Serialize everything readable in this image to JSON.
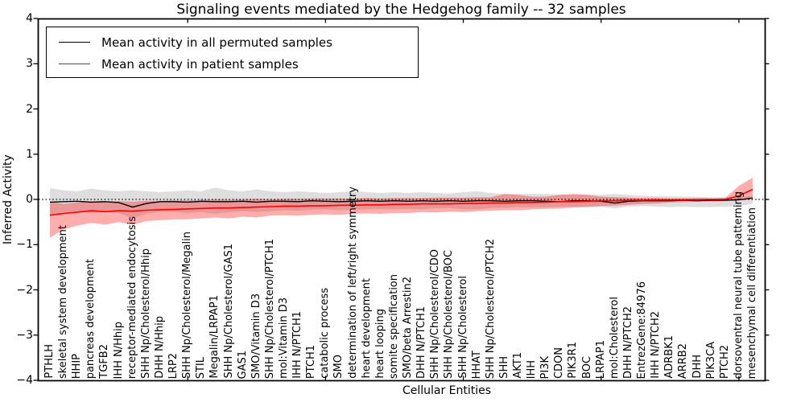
{
  "title": "Signaling events mediated by the Hedgehog family -- 32 samples",
  "legend": {
    "items": [
      {
        "label": "Mean activity in all permuted samples",
        "color": "#000000"
      },
      {
        "label": "Mean activity in patient samples",
        "color": "#ff0000"
      }
    ]
  },
  "axes": {
    "xlabel": "Cellular Entities",
    "ylabel": "Inferred Activity",
    "ytick_labels": [
      "4",
      "3",
      "2",
      "1",
      "0",
      "−1",
      "−2",
      "−3",
      "−4"
    ]
  },
  "chart_data": {
    "type": "line",
    "title": "Signaling events mediated by the Hedgehog family -- 32 samples",
    "xlabel": "Cellular Entities",
    "ylabel": "Inferred Activity",
    "ylim": [
      -4,
      4
    ],
    "yticks": [
      4,
      3,
      2,
      1,
      0,
      -1,
      -2,
      -3,
      -4
    ],
    "xtick_positions": [
      10,
      20,
      30,
      40,
      50
    ],
    "grid": false,
    "legend_position": "upper left",
    "baseline": {
      "y": 0,
      "style": "dotted",
      "color": "#000000"
    },
    "categories": [
      "PTHLH",
      "skeletal system development",
      "HHIP",
      "pancreas development",
      "TGFB2",
      "IHH N/Hhip",
      "receptor-mediated endocytosis",
      "SHH Np/Cholesterol/Hhip",
      "DHH N/Hhip",
      "LRP2",
      "SHH Np/Cholesterol/Megalin",
      "STIL",
      "Megalin/LRPAP1",
      "SHH Np/Cholesterol/GAS1",
      "GAS1",
      "SMO/Vitamin D3",
      "SHH Np/Cholesterol/PTCH1",
      "mol:Vitamin D3",
      "IHH N/PTCH1",
      "PTCH1",
      "catabolic process",
      "SMO",
      "determination of left/right symmetry",
      "heart development",
      "heart looping",
      "somite specification",
      "SMO/beta Arrestin2",
      "DHH N/PTCH1",
      "SHH Np/Cholesterol/CDO",
      "SHH Np/Cholesterol/BOC",
      "SHH Np/Cholesterol",
      "HHAT",
      "SHH Np/Cholesterol/PTCH2",
      "SHH",
      "AKT1",
      "IHH",
      "PI3K",
      "CDON",
      "PIK3R1",
      "BOC",
      "LRPAP1",
      "mol:Cholesterol",
      "DHH N/PTCH2",
      "EntrezGene:84976",
      "IHH N/PTCH2",
      "ADRBK1",
      "ARRB2",
      "DHH",
      "PIK3CA",
      "PTCH2",
      "dorsoventral neural tube patterning",
      "mesenchymal cell differentiation"
    ],
    "series": [
      {
        "name": "Mean activity in all permuted samples",
        "color": "#000000",
        "values": [
          -0.06,
          -0.05,
          -0.04,
          -0.06,
          -0.05,
          -0.07,
          -0.17,
          -0.09,
          -0.05,
          -0.05,
          -0.06,
          -0.04,
          -0.05,
          -0.05,
          -0.04,
          -0.06,
          -0.04,
          -0.04,
          -0.05,
          -0.03,
          -0.04,
          -0.05,
          -0.04,
          -0.03,
          -0.04,
          -0.03,
          -0.04,
          -0.03,
          -0.04,
          -0.03,
          -0.04,
          -0.03,
          -0.03,
          -0.04,
          -0.03,
          -0.03,
          -0.04,
          -0.05,
          -0.03,
          -0.03,
          -0.04,
          -0.08,
          -0.04,
          -0.03,
          -0.03,
          -0.03,
          -0.02,
          -0.03,
          -0.02,
          -0.02,
          -0.01,
          0.03
        ],
        "band": {
          "upper": [
            0.25,
            0.2,
            0.18,
            0.24,
            0.2,
            0.18,
            0.2,
            0.18,
            0.16,
            0.18,
            0.2,
            0.18,
            0.26,
            0.2,
            0.18,
            0.22,
            0.18,
            0.16,
            0.18,
            0.16,
            0.14,
            0.16,
            0.18,
            0.16,
            0.14,
            0.16,
            0.14,
            0.16,
            0.14,
            0.13,
            0.16,
            0.18,
            0.14,
            0.12,
            0.12,
            0.12,
            0.12,
            0.11,
            0.1,
            0.11,
            0.1,
            0.12,
            0.1,
            0.08,
            0.07,
            0.07,
            0.06,
            0.06,
            0.05,
            0.05,
            0.06,
            0.08
          ],
          "lower": [
            -0.35,
            -0.28,
            -0.26,
            -0.3,
            -0.28,
            -0.3,
            -0.42,
            -0.32,
            -0.28,
            -0.28,
            -0.3,
            -0.28,
            -0.32,
            -0.28,
            -0.26,
            -0.28,
            -0.26,
            -0.24,
            -0.25,
            -0.23,
            -0.22,
            -0.24,
            -0.23,
            -0.22,
            -0.21,
            -0.22,
            -0.21,
            -0.22,
            -0.2,
            -0.19,
            -0.22,
            -0.22,
            -0.19,
            -0.18,
            -0.17,
            -0.17,
            -0.17,
            -0.16,
            -0.16,
            -0.16,
            -0.16,
            -0.2,
            -0.16,
            -0.15,
            -0.16,
            -0.17,
            -0.16,
            -0.17,
            -0.17,
            -0.16,
            -0.15,
            -0.1
          ],
          "color": "#000000",
          "opacity": 0.13
        }
      },
      {
        "name": "Mean activity in patient samples",
        "color": "#ff0000",
        "values": [
          -0.35,
          -0.31,
          -0.28,
          -0.25,
          -0.27,
          -0.25,
          -0.26,
          -0.24,
          -0.23,
          -0.22,
          -0.21,
          -0.2,
          -0.19,
          -0.19,
          -0.18,
          -0.17,
          -0.16,
          -0.15,
          -0.15,
          -0.14,
          -0.14,
          -0.13,
          -0.13,
          -0.12,
          -0.12,
          -0.11,
          -0.11,
          -0.1,
          -0.1,
          -0.1,
          -0.09,
          -0.09,
          -0.08,
          -0.08,
          -0.07,
          -0.07,
          -0.06,
          -0.05,
          -0.05,
          -0.04,
          -0.03,
          -0.03,
          -0.02,
          -0.02,
          -0.01,
          -0.01,
          -0.01,
          0.0,
          0.0,
          0.0,
          0.08,
          0.22
        ],
        "band": {
          "upper": [
            -0.05,
            -0.1,
            -0.07,
            -0.04,
            -0.05,
            -0.04,
            -0.05,
            -0.03,
            -0.03,
            -0.02,
            -0.02,
            -0.01,
            0.0,
            -0.01,
            0.0,
            0.01,
            0.0,
            0.01,
            0.01,
            0.02,
            0.02,
            0.02,
            0.02,
            0.03,
            0.02,
            0.03,
            0.03,
            0.03,
            0.04,
            0.04,
            0.04,
            0.05,
            0.05,
            0.12,
            0.1,
            0.06,
            0.06,
            0.1,
            0.12,
            0.1,
            0.06,
            0.05,
            0.04,
            0.03,
            0.03,
            0.02,
            0.02,
            0.02,
            0.02,
            0.03,
            0.3,
            0.48
          ],
          "lower": [
            -0.85,
            -0.66,
            -0.58,
            -0.52,
            -0.56,
            -0.5,
            -0.56,
            -0.48,
            -0.46,
            -0.44,
            -0.44,
            -0.42,
            -0.4,
            -0.42,
            -0.38,
            -0.4,
            -0.36,
            -0.35,
            -0.36,
            -0.34,
            -0.33,
            -0.34,
            -0.32,
            -0.31,
            -0.32,
            -0.3,
            -0.3,
            -0.28,
            -0.29,
            -0.27,
            -0.28,
            -0.26,
            -0.25,
            -0.24,
            -0.24,
            -0.22,
            -0.21,
            -0.2,
            -0.18,
            -0.17,
            -0.15,
            -0.14,
            -0.12,
            -0.1,
            -0.09,
            -0.07,
            -0.06,
            -0.05,
            -0.05,
            -0.04,
            0.0,
            0.04
          ],
          "color": "#ff0000",
          "opacity": 0.32
        }
      }
    ]
  }
}
